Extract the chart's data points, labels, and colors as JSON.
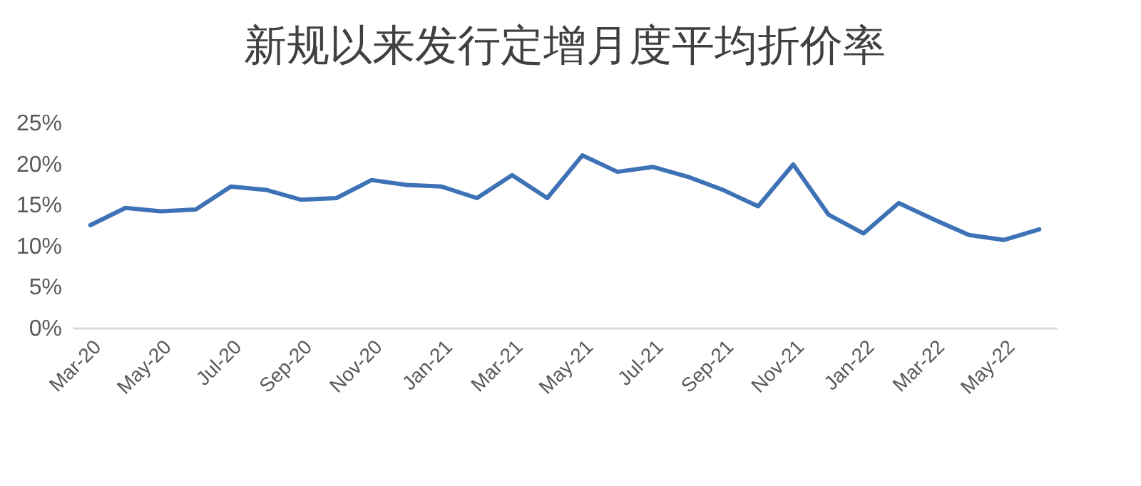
{
  "chart_data": {
    "type": "line",
    "title": "新规以来发行定增月度平均折价率",
    "categories": [
      "Mar-20",
      null,
      "May-20",
      null,
      "Jul-20",
      null,
      "Sep-20",
      null,
      "Nov-20",
      null,
      "Jan-21",
      null,
      "Mar-21",
      null,
      "May-21",
      null,
      "Jul-21",
      null,
      "Sep-21",
      null,
      "Nov-21",
      null,
      "Jan-22",
      null,
      "Mar-22",
      null,
      "May-22",
      null
    ],
    "series": [
      {
        "color": "#3d72b6",
        "values": [
          12.5,
          14.6,
          14.2,
          14.4,
          17.2,
          16.8,
          15.6,
          15.8,
          18.0,
          17.4,
          17.2,
          15.8,
          18.6,
          15.8,
          21.0,
          19.0,
          19.6,
          18.4,
          16.8,
          14.8,
          19.9,
          13.8,
          11.5,
          15.2,
          13.2,
          11.3,
          10.7,
          12.0
        ]
      }
    ],
    "ylim": [
      0,
      25
    ],
    "yticks": [
      {
        "value": 0,
        "label": "0%"
      },
      {
        "value": 5,
        "label": "5%"
      },
      {
        "value": 10,
        "label": "10%"
      },
      {
        "value": 15,
        "label": "15%"
      },
      {
        "value": 20,
        "label": "20%"
      },
      {
        "value": 25,
        "label": "25%"
      }
    ],
    "grid": false,
    "marker": "none",
    "line_style": "solid"
  }
}
